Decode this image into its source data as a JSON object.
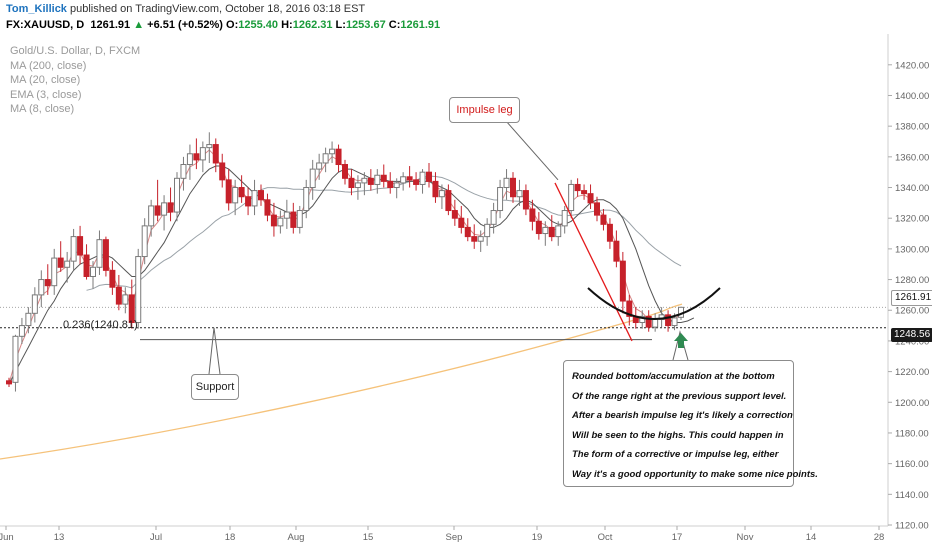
{
  "header": {
    "author": "Tom_Killick",
    "published": "published on TradingView.com, October 18, 2016 03:18 EST",
    "symbol": "FX:XAUUSD, D",
    "last": "1261.91",
    "change_arrow": "▲",
    "change": "+6.51 (+0.52%)",
    "o_label": "O:",
    "o_value": "1255.40",
    "h_label": "H:",
    "h_value": "1262.31",
    "l_label": "L:",
    "l_value": "1253.67",
    "c_label": "C:",
    "c_value": "1261.91"
  },
  "legend": {
    "title": "Gold/U.S. Dollar, D, FXCM",
    "ma200": "MA (200, close)",
    "ma20": "MA (20, close)",
    "ema3": "EMA (3, close)",
    "ma8": "MA (8, close)"
  },
  "annotations": {
    "impulse": "Impulse leg",
    "support": "Support",
    "fib": "0.236(1240.81)",
    "note_lines": [
      "Rounded bottom/accumulation at the bottom",
      "Of the range right at the previous support level.",
      "After a bearish impulse leg it's likely a correction",
      "Will be seen to the highs. This could happen in",
      "The form of a corrective or impulse leg, either",
      "Way it's a good opportunity to make some nice points."
    ]
  },
  "price_tags": {
    "last": "1261.91",
    "crosshair": "1248.56"
  },
  "colors": {
    "up": "#7a7a7a",
    "down": "#c6212a",
    "ma200": "#f5c27a",
    "ma20": "#9aa2a8",
    "ema3": "#d98787",
    "ma8": "#555555",
    "impulse": "#e41a1c"
  },
  "chart_data": {
    "type": "candlestick",
    "y_axis_ticks": [
      1120,
      1140,
      1160,
      1180,
      1200,
      1220,
      1240,
      1260,
      1280,
      1300,
      1320,
      1340,
      1360,
      1380,
      1400,
      1420
    ],
    "ylim": [
      1109,
      1432
    ],
    "x_axis_labels": [
      "Jun",
      "13",
      "Jul",
      "18",
      "Aug",
      "15",
      "Sep",
      "19",
      "Oct",
      "17",
      "Nov",
      "14",
      "28"
    ],
    "support_level": 1248.56,
    "fib_level": {
      "label": "0.236(1240.81)",
      "value": 1240.81
    },
    "ohlc": [
      [
        1214,
        1216,
        1210,
        1212
      ],
      [
        1213,
        1244,
        1207,
        1243
      ],
      [
        1243,
        1255,
        1238,
        1250
      ],
      [
        1250,
        1262,
        1245,
        1258
      ],
      [
        1258,
        1275,
        1252,
        1270
      ],
      [
        1270,
        1286,
        1262,
        1280
      ],
      [
        1280,
        1290,
        1270,
        1276
      ],
      [
        1276,
        1300,
        1270,
        1294
      ],
      [
        1294,
        1305,
        1285,
        1288
      ],
      [
        1288,
        1298,
        1278,
        1292
      ],
      [
        1292,
        1313,
        1286,
        1308
      ],
      [
        1308,
        1315,
        1290,
        1296
      ],
      [
        1296,
        1303,
        1280,
        1282
      ],
      [
        1282,
        1292,
        1274,
        1288
      ],
      [
        1288,
        1312,
        1283,
        1306
      ],
      [
        1306,
        1308,
        1282,
        1286
      ],
      [
        1286,
        1292,
        1270,
        1275
      ],
      [
        1275,
        1283,
        1260,
        1264
      ],
      [
        1264,
        1275,
        1258,
        1270
      ],
      [
        1270,
        1280,
        1248,
        1252
      ],
      [
        1252,
        1300,
        1248,
        1295
      ],
      [
        1295,
        1320,
        1290,
        1315
      ],
      [
        1315,
        1332,
        1308,
        1328
      ],
      [
        1328,
        1345,
        1318,
        1322
      ],
      [
        1322,
        1335,
        1312,
        1330
      ],
      [
        1330,
        1340,
        1318,
        1324
      ],
      [
        1324,
        1350,
        1318,
        1346
      ],
      [
        1346,
        1360,
        1338,
        1355
      ],
      [
        1355,
        1368,
        1345,
        1362
      ],
      [
        1362,
        1372,
        1352,
        1358
      ],
      [
        1358,
        1370,
        1350,
        1366
      ],
      [
        1366,
        1376,
        1356,
        1368
      ],
      [
        1368,
        1372,
        1350,
        1356
      ],
      [
        1356,
        1362,
        1340,
        1345
      ],
      [
        1345,
        1352,
        1325,
        1330
      ],
      [
        1330,
        1345,
        1322,
        1340
      ],
      [
        1340,
        1348,
        1330,
        1334
      ],
      [
        1334,
        1340,
        1322,
        1328
      ],
      [
        1328,
        1345,
        1322,
        1338
      ],
      [
        1338,
        1342,
        1328,
        1332
      ],
      [
        1332,
        1336,
        1318,
        1322
      ],
      [
        1322,
        1330,
        1308,
        1315
      ],
      [
        1315,
        1325,
        1310,
        1320
      ],
      [
        1320,
        1332,
        1313,
        1324
      ],
      [
        1324,
        1330,
        1310,
        1314
      ],
      [
        1314,
        1328,
        1310,
        1325
      ],
      [
        1325,
        1345,
        1320,
        1340
      ],
      [
        1340,
        1358,
        1332,
        1352
      ],
      [
        1352,
        1362,
        1345,
        1356
      ],
      [
        1356,
        1366,
        1350,
        1362
      ],
      [
        1362,
        1370,
        1356,
        1365
      ],
      [
        1365,
        1368,
        1350,
        1355
      ],
      [
        1355,
        1358,
        1342,
        1346
      ],
      [
        1346,
        1352,
        1335,
        1340
      ],
      [
        1340,
        1348,
        1332,
        1343
      ],
      [
        1343,
        1350,
        1335,
        1346
      ],
      [
        1346,
        1352,
        1338,
        1342
      ],
      [
        1342,
        1352,
        1336,
        1348
      ],
      [
        1348,
        1355,
        1340,
        1344
      ],
      [
        1344,
        1350,
        1336,
        1340
      ],
      [
        1340,
        1346,
        1333,
        1343
      ],
      [
        1343,
        1350,
        1338,
        1347
      ],
      [
        1347,
        1354,
        1340,
        1345
      ],
      [
        1345,
        1350,
        1338,
        1342
      ],
      [
        1342,
        1352,
        1336,
        1350
      ],
      [
        1350,
        1356,
        1340,
        1344
      ],
      [
        1344,
        1350,
        1330,
        1334
      ],
      [
        1334,
        1342,
        1326,
        1338
      ],
      [
        1338,
        1342,
        1322,
        1325
      ],
      [
        1325,
        1332,
        1315,
        1320
      ],
      [
        1320,
        1328,
        1310,
        1314
      ],
      [
        1314,
        1320,
        1305,
        1308
      ],
      [
        1308,
        1316,
        1300,
        1305
      ],
      [
        1305,
        1312,
        1298,
        1308
      ],
      [
        1308,
        1320,
        1302,
        1316
      ],
      [
        1316,
        1330,
        1310,
        1325
      ],
      [
        1325,
        1345,
        1320,
        1340
      ],
      [
        1340,
        1352,
        1332,
        1346
      ],
      [
        1346,
        1350,
        1330,
        1334
      ],
      [
        1334,
        1345,
        1328,
        1338
      ],
      [
        1338,
        1342,
        1322,
        1326
      ],
      [
        1326,
        1332,
        1312,
        1318
      ],
      [
        1318,
        1324,
        1306,
        1310
      ],
      [
        1310,
        1318,
        1302,
        1314
      ],
      [
        1314,
        1322,
        1305,
        1308
      ],
      [
        1308,
        1318,
        1302,
        1315
      ],
      [
        1315,
        1328,
        1310,
        1325
      ],
      [
        1325,
        1345,
        1320,
        1342
      ],
      [
        1342,
        1346,
        1334,
        1338
      ],
      [
        1338,
        1342,
        1332,
        1336
      ],
      [
        1336,
        1342,
        1326,
        1330
      ],
      [
        1330,
        1334,
        1318,
        1322
      ],
      [
        1322,
        1326,
        1312,
        1316
      ],
      [
        1316,
        1320,
        1300,
        1305
      ],
      [
        1305,
        1312,
        1288,
        1292
      ],
      [
        1292,
        1298,
        1258,
        1266
      ],
      [
        1266,
        1270,
        1250,
        1256
      ],
      [
        1256,
        1262,
        1248,
        1252
      ],
      [
        1252,
        1260,
        1248,
        1256
      ],
      [
        1256,
        1260,
        1246,
        1249
      ],
      [
        1249,
        1258,
        1246,
        1254
      ],
      [
        1254,
        1262,
        1249,
        1257
      ],
      [
        1257,
        1260,
        1246,
        1250
      ],
      [
        1250,
        1258,
        1247,
        1255
      ],
      [
        1255.4,
        1262.31,
        1253.67,
        1261.91
      ]
    ],
    "ma8": [
      1212,
      1220,
      1228,
      1236,
      1244,
      1252,
      1260,
      1266,
      1274,
      1280,
      1286,
      1290,
      1292,
      1294,
      1296,
      1296,
      1294,
      1290,
      1286,
      1282,
      1282,
      1286,
      1292,
      1298,
      1304,
      1312,
      1320,
      1328,
      1336,
      1342,
      1348,
      1352,
      1354,
      1354,
      1352,
      1348,
      1344,
      1340,
      1336,
      1334,
      1330,
      1328,
      1326,
      1324,
      1322,
      1322,
      1324,
      1328,
      1334,
      1340,
      1346,
      1350,
      1352,
      1352,
      1350,
      1348,
      1346,
      1345,
      1345,
      1344,
      1344,
      1344,
      1344,
      1344,
      1344,
      1344,
      1342,
      1340,
      1338,
      1334,
      1330,
      1326,
      1320,
      1316,
      1314,
      1314,
      1316,
      1320,
      1326,
      1330,
      1332,
      1330,
      1326,
      1322,
      1318,
      1316,
      1316,
      1318,
      1322,
      1326,
      1330,
      1332,
      1332,
      1330,
      1326,
      1320,
      1310,
      1300,
      1288,
      1276,
      1266,
      1258,
      1254,
      1252,
      1252,
      1253,
      1255
    ]
  }
}
